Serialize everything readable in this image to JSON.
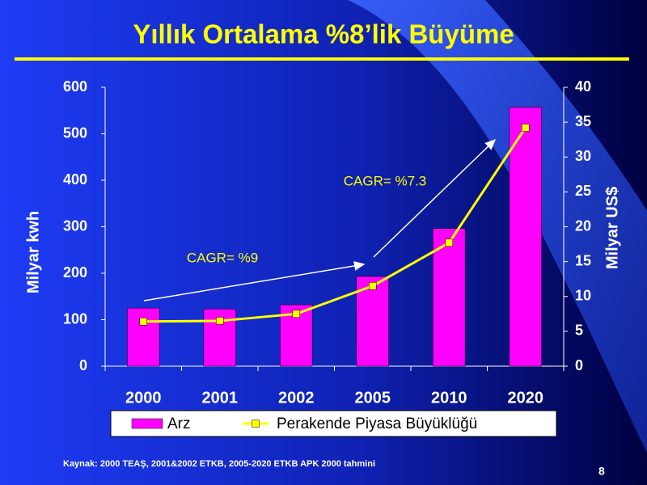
{
  "chart_data": {
    "type": "bar",
    "title": "Yıllık Ortalama %8’lik Büyüme",
    "categories": [
      "2000",
      "2001",
      "2002",
      "2005",
      "2010",
      "2020"
    ],
    "series": [
      {
        "name": "Arz",
        "type": "bar",
        "color": "#ff00ff",
        "axis": "y",
        "values": [
          125,
          123,
          132,
          193,
          296,
          557
        ]
      },
      {
        "name": "Perakende Piyasa Büyüklüğü",
        "type": "line",
        "color": "#ffff00",
        "axis": "y2",
        "values": [
          6.4,
          6.5,
          7.5,
          11.5,
          17.7,
          34.2
        ]
      }
    ],
    "ylim": [
      0,
      600
    ],
    "yticks": [
      0,
      100,
      200,
      300,
      400,
      500,
      600
    ],
    "y2lim": [
      0,
      40
    ],
    "y2ticks": [
      0,
      5,
      10,
      15,
      20,
      25,
      30,
      35,
      40
    ],
    "ylabel": "Milyar kwh",
    "y2label": "Milyar US$",
    "annotations": [
      "CAGR= %9",
      "CAGR= %7.3"
    ],
    "source": "Kaynak: 2000 TEAŞ, 2001&2002 ETKB, 2005-2020 ETKB APK 2000 tahmini",
    "page_number": "8",
    "grid": false
  }
}
